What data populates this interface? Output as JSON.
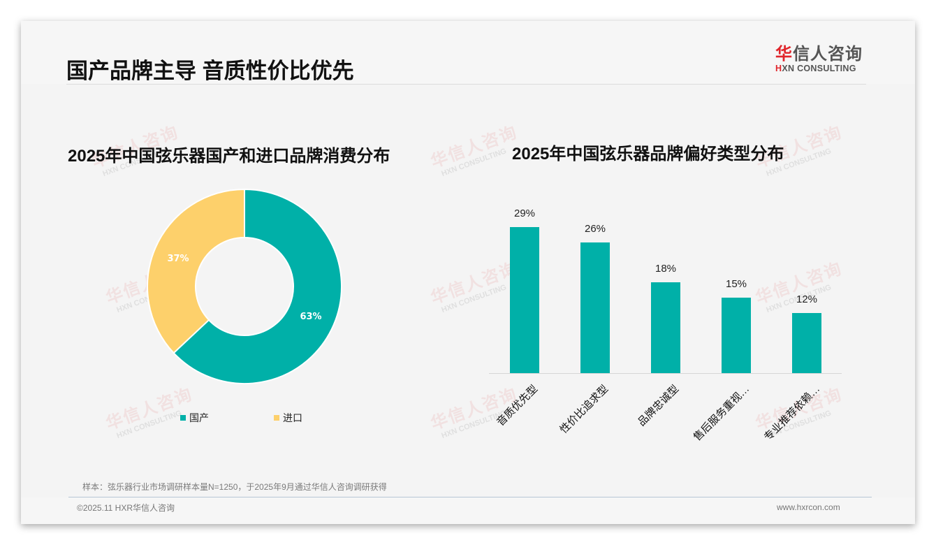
{
  "header": {
    "title": "国产品牌主导 音质性价比优先",
    "logo": {
      "cn_accent": "华",
      "cn_rest": "信人咨询",
      "en_accent": "H",
      "en_rest": "XN CONSULTING"
    }
  },
  "charts": {
    "left_title": "2025年中国弦乐器国产和进口品牌消费分布",
    "right_title": "2025年中国弦乐器品牌偏好类型分布"
  },
  "legend": [
    {
      "label": "国产",
      "color": "#00b0a8"
    },
    {
      "label": "进口",
      "color": "#fdd06b"
    }
  ],
  "donut_labels": {
    "domestic": "63%",
    "imported": "37%"
  },
  "bars": [
    {
      "label": "音质优先型",
      "value": 29,
      "text": "29%"
    },
    {
      "label": "性价比追求型",
      "value": 26,
      "text": "26%"
    },
    {
      "label": "品牌忠诚型",
      "value": 18,
      "text": "18%"
    },
    {
      "label": "售后服务重视…",
      "value": 15,
      "text": "15%"
    },
    {
      "label": "专业推荐依赖…",
      "value": 12,
      "text": "12%"
    }
  ],
  "watermark": {
    "cn": "华信人咨询",
    "en": "HXN CONSULTING"
  },
  "footer": {
    "note": "样本：弦乐器行业市场调研样本量N=1250，于2025年9月通过华信人咨询调研获得",
    "copyright": "©2025.11 HXR华信人咨询",
    "website": "www.hxrcon.com"
  },
  "colors": {
    "teal": "#00b0a8",
    "yellow": "#fdd06b",
    "logo_red": "#e0252b"
  },
  "chart_data": [
    {
      "type": "pie",
      "title": "2025年中国弦乐器国产和进口品牌消费分布",
      "categories": [
        "国产",
        "进口"
      ],
      "values": [
        63,
        37
      ],
      "unit": "%",
      "donut": true,
      "colors": [
        "#00b0a8",
        "#fdd06b"
      ],
      "legend_position": "bottom"
    },
    {
      "type": "bar",
      "title": "2025年中国弦乐器品牌偏好类型分布",
      "categories": [
        "音质优先型",
        "性价比追求型",
        "品牌忠诚型",
        "售后服务重视…",
        "专业推荐依赖…"
      ],
      "values": [
        29,
        26,
        18,
        15,
        12
      ],
      "unit": "%",
      "xlabel": "",
      "ylabel": "",
      "ylim": [
        0,
        30
      ],
      "grid": false,
      "data_labels": true,
      "color": "#00b0a8"
    }
  ]
}
